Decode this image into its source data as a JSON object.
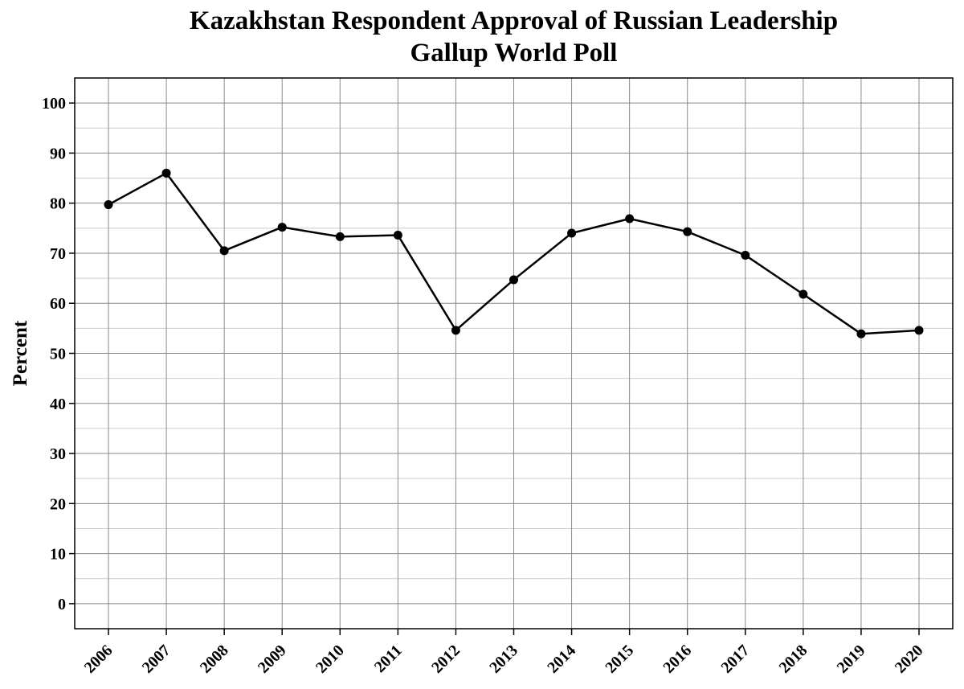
{
  "chart_data": {
    "type": "line",
    "title": "Kazakhstan Respondent Approval of Russian Leadership",
    "subtitle": "Gallup World Poll",
    "xlabel": "",
    "ylabel": "Percent",
    "x": [
      "2006",
      "2007",
      "2008",
      "2009",
      "2010",
      "2011",
      "2012",
      "2013",
      "2014",
      "2015",
      "2016",
      "2017",
      "2018",
      "2019",
      "2020"
    ],
    "series": [
      {
        "values": [
          79.7,
          86.0,
          70.5,
          75.2,
          73.3,
          73.6,
          54.6,
          64.7,
          74.0,
          76.9,
          74.3,
          69.6,
          61.8,
          53.9,
          54.6
        ]
      }
    ],
    "ylim": [
      -5,
      105
    ],
    "yticks": [
      0,
      10,
      20,
      30,
      40,
      50,
      60,
      70,
      80,
      90,
      100
    ],
    "grid": true,
    "line_color": "#000000",
    "marker_color": "#000000"
  }
}
